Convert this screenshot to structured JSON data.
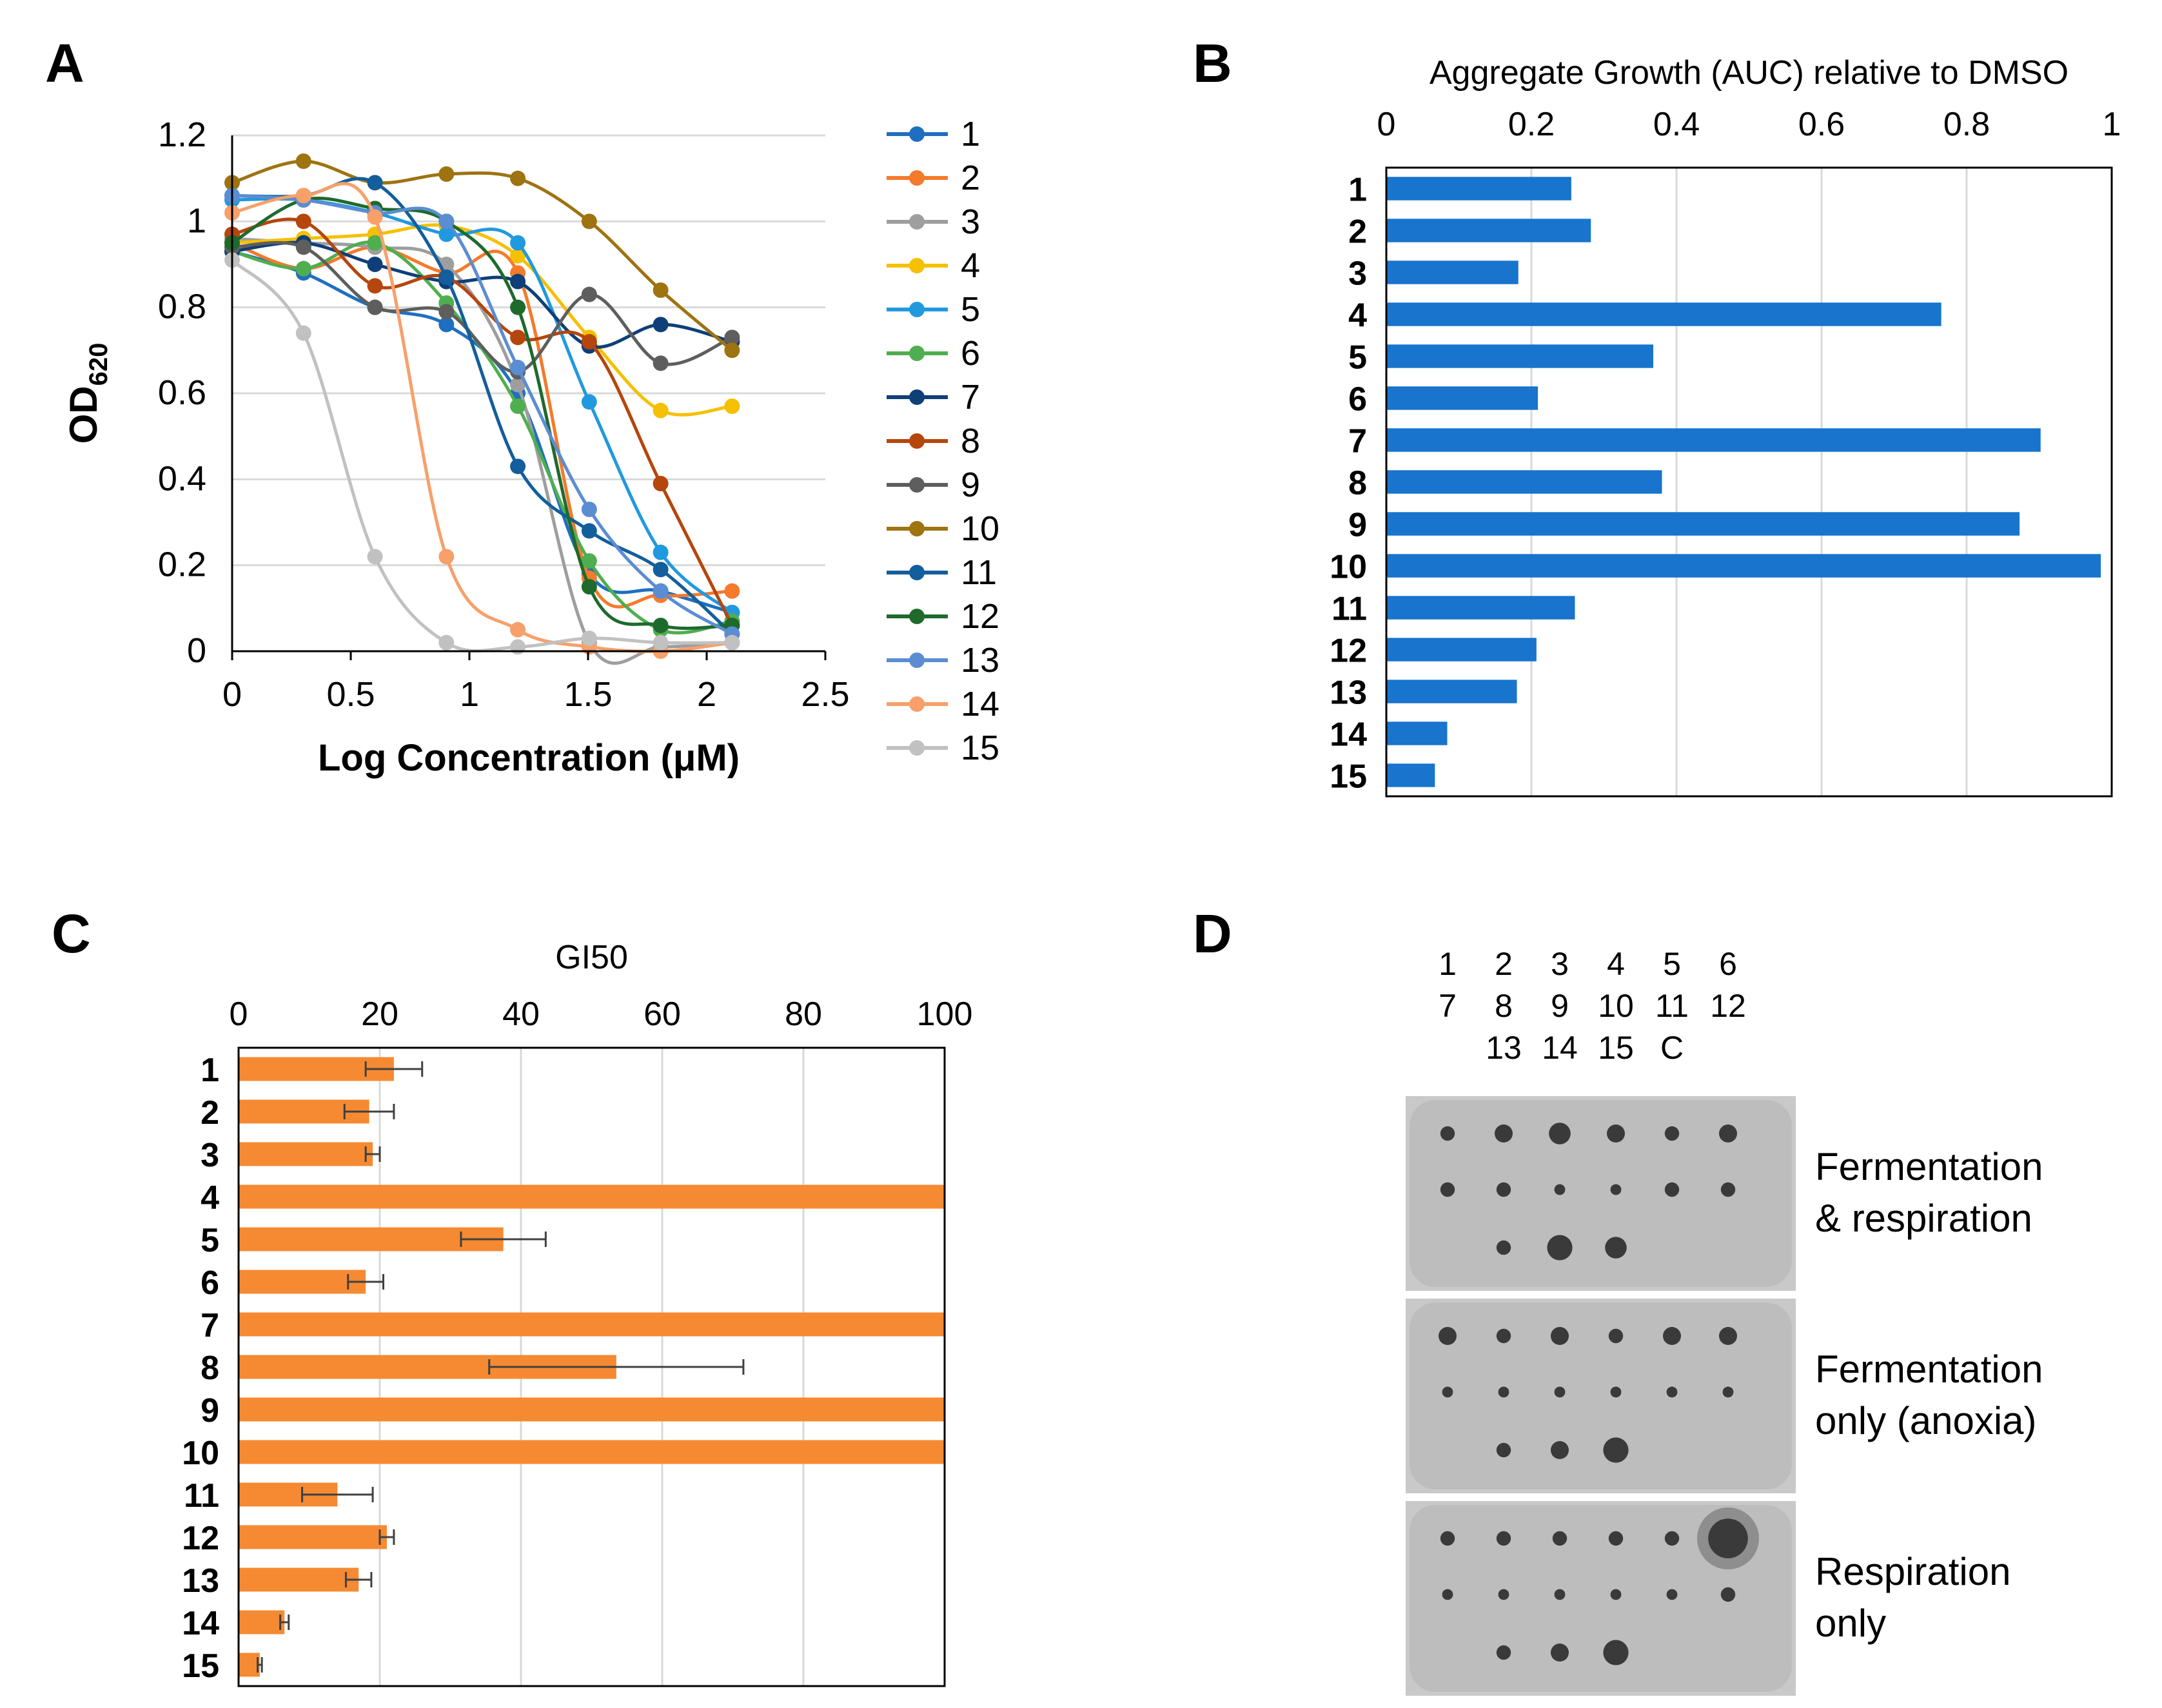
{
  "panels": {
    "A": "A",
    "B": "B",
    "C": "C",
    "D": "D"
  },
  "colors": {
    "bar_b": "#1874CD",
    "bar_c": "#F58A33",
    "grid": "#D9D9D9",
    "axis": "#000000",
    "errorbar": "#404040"
  },
  "chart_data": [
    {
      "id": "A",
      "type": "line",
      "title": "",
      "xlabel": "Log Concentration (μM)",
      "ylabel_main": "OD",
      "ylabel_sub": "620",
      "xlim": [
        0,
        2.5
      ],
      "ylim": [
        0,
        1.2
      ],
      "xticks": [
        0,
        0.5,
        1,
        1.5,
        2,
        2.5
      ],
      "xtick_labels": [
        "0",
        "0.5",
        "1",
        "1.5",
        "2",
        "2.5"
      ],
      "yticks": [
        0,
        0.2,
        0.4,
        0.6,
        0.8,
        1,
        1.2
      ],
      "ytick_labels": [
        "0",
        "0.2",
        "0.4",
        "0.6",
        "0.8",
        "1",
        "1.2"
      ],
      "grid": "horizontal",
      "legend": "right",
      "x": [
        0,
        0.301,
        0.602,
        0.903,
        1.204,
        1.505,
        1.806,
        2.107
      ],
      "series": [
        {
          "name": "1",
          "color": "#1F6FC0",
          "values": [
            0.93,
            0.88,
            0.8,
            0.76,
            0.6,
            0.18,
            0.14,
            0.09
          ]
        },
        {
          "name": "2",
          "color": "#F47A2C",
          "values": [
            0.95,
            0.89,
            0.94,
            0.88,
            0.88,
            0.17,
            0.13,
            0.14
          ]
        },
        {
          "name": "3",
          "color": "#9E9E9E",
          "values": [
            0.96,
            0.95,
            0.94,
            0.9,
            0.62,
            0.02,
            0.01,
            0.02
          ]
        },
        {
          "name": "4",
          "color": "#F5C000",
          "values": [
            0.95,
            0.96,
            0.97,
            0.99,
            0.92,
            0.73,
            0.56,
            0.57
          ]
        },
        {
          "name": "5",
          "color": "#2199DE",
          "values": [
            1.05,
            1.05,
            1.02,
            0.97,
            0.95,
            0.58,
            0.23,
            0.09
          ]
        },
        {
          "name": "6",
          "color": "#4FAE4F",
          "values": [
            0.93,
            0.89,
            0.95,
            0.81,
            0.57,
            0.21,
            0.05,
            0.07
          ]
        },
        {
          "name": "7",
          "color": "#0E3F78",
          "values": [
            0.93,
            0.95,
            0.9,
            0.86,
            0.86,
            0.71,
            0.76,
            0.72
          ]
        },
        {
          "name": "8",
          "color": "#B5460C",
          "values": [
            0.97,
            1.0,
            0.85,
            0.87,
            0.73,
            0.72,
            0.39,
            0.06
          ]
        },
        {
          "name": "9",
          "color": "#5E5E5E",
          "values": [
            0.94,
            0.94,
            0.8,
            0.79,
            0.65,
            0.83,
            0.67,
            0.73
          ]
        },
        {
          "name": "10",
          "color": "#9E7310",
          "values": [
            1.09,
            1.14,
            1.09,
            1.11,
            1.1,
            1.0,
            0.84,
            0.7
          ]
        },
        {
          "name": "11",
          "color": "#135E9C",
          "values": [
            1.06,
            1.06,
            1.09,
            0.87,
            0.43,
            0.28,
            0.19,
            0.04
          ]
        },
        {
          "name": "12",
          "color": "#1E6A2D",
          "values": [
            0.95,
            1.05,
            1.03,
            1.0,
            0.8,
            0.15,
            0.06,
            0.06
          ]
        },
        {
          "name": "13",
          "color": "#5B8DD2",
          "values": [
            1.06,
            1.05,
            1.02,
            1.0,
            0.66,
            0.33,
            0.14,
            0.04
          ]
        },
        {
          "name": "14",
          "color": "#F7A06A",
          "values": [
            1.02,
            1.06,
            1.01,
            0.22,
            0.05,
            0.01,
            0.0,
            0.02
          ]
        },
        {
          "name": "15",
          "color": "#C1C1C1",
          "values": [
            0.91,
            0.74,
            0.22,
            0.02,
            0.01,
            0.03,
            0.02,
            0.02
          ]
        }
      ]
    },
    {
      "id": "B",
      "type": "bar",
      "orientation": "horizontal",
      "title": "Aggregate Growth (AUC) relative to DMSO",
      "xlim": [
        0,
        1
      ],
      "xticks": [
        0,
        0.2,
        0.4,
        0.6,
        0.8,
        1
      ],
      "xtick_labels": [
        "0",
        "0.2",
        "0.4",
        "0.6",
        "0.8",
        "1"
      ],
      "axis_position": "top",
      "grid": "vertical",
      "categories": [
        "1",
        "2",
        "3",
        "4",
        "5",
        "6",
        "7",
        "8",
        "9",
        "10",
        "11",
        "12",
        "13",
        "14",
        "15"
      ],
      "values": [
        0.255,
        0.282,
        0.182,
        0.765,
        0.368,
        0.209,
        0.902,
        0.38,
        0.873,
        0.985,
        0.26,
        0.207,
        0.18,
        0.084,
        0.067
      ]
    },
    {
      "id": "C",
      "type": "bar",
      "orientation": "horizontal",
      "title": "GI50",
      "xlim": [
        0,
        100
      ],
      "xticks": [
        0,
        20,
        40,
        60,
        80,
        100
      ],
      "xtick_labels": [
        "0",
        "20",
        "40",
        "60",
        "80",
        "100"
      ],
      "axis_position": "top",
      "grid": "vertical",
      "categories": [
        "1",
        "2",
        "3",
        "4",
        "5",
        "6",
        "7",
        "8",
        "9",
        "10",
        "11",
        "12",
        "13",
        "14",
        "15"
      ],
      "values": [
        22,
        18.5,
        19,
        100,
        37.5,
        18,
        100,
        53.5,
        100,
        100,
        14,
        21,
        17,
        6.5,
        3
      ],
      "errors": [
        4,
        3.5,
        1,
        0,
        6,
        2.5,
        0,
        18,
        0,
        0,
        5,
        1,
        1.8,
        0.6,
        0.3
      ]
    }
  ],
  "panel_d": {
    "header_rows": [
      [
        "1",
        "2",
        "3",
        "4",
        "5",
        "6"
      ],
      [
        "7",
        "8",
        "9",
        "10",
        "11",
        "12"
      ],
      [
        "",
        "13",
        "14",
        "15",
        "C",
        ""
      ]
    ],
    "rows": [
      {
        "label_line1": "Fermentation",
        "label_line2": "& respiration",
        "spots": [
          [
            4,
            5,
            6,
            5,
            4,
            5
          ],
          [
            4,
            4,
            3,
            3,
            4,
            4
          ],
          [
            0,
            4,
            7,
            6,
            0,
            0
          ]
        ],
        "halo": false
      },
      {
        "label_line1": "Fermentation",
        "label_line2": "only (anoxia)",
        "spots": [
          [
            5,
            4,
            5,
            4,
            5,
            5
          ],
          [
            3,
            3,
            3,
            3,
            3,
            3
          ],
          [
            0,
            4,
            5,
            7,
            0,
            0
          ]
        ],
        "halo": false
      },
      {
        "label_line1": "Respiration",
        "label_line2": "only",
        "spots": [
          [
            4,
            4,
            4,
            4,
            4,
            11
          ],
          [
            3,
            3,
            3,
            3,
            3,
            4
          ],
          [
            0,
            4,
            5,
            7,
            0,
            0
          ]
        ],
        "halo": true
      }
    ]
  }
}
